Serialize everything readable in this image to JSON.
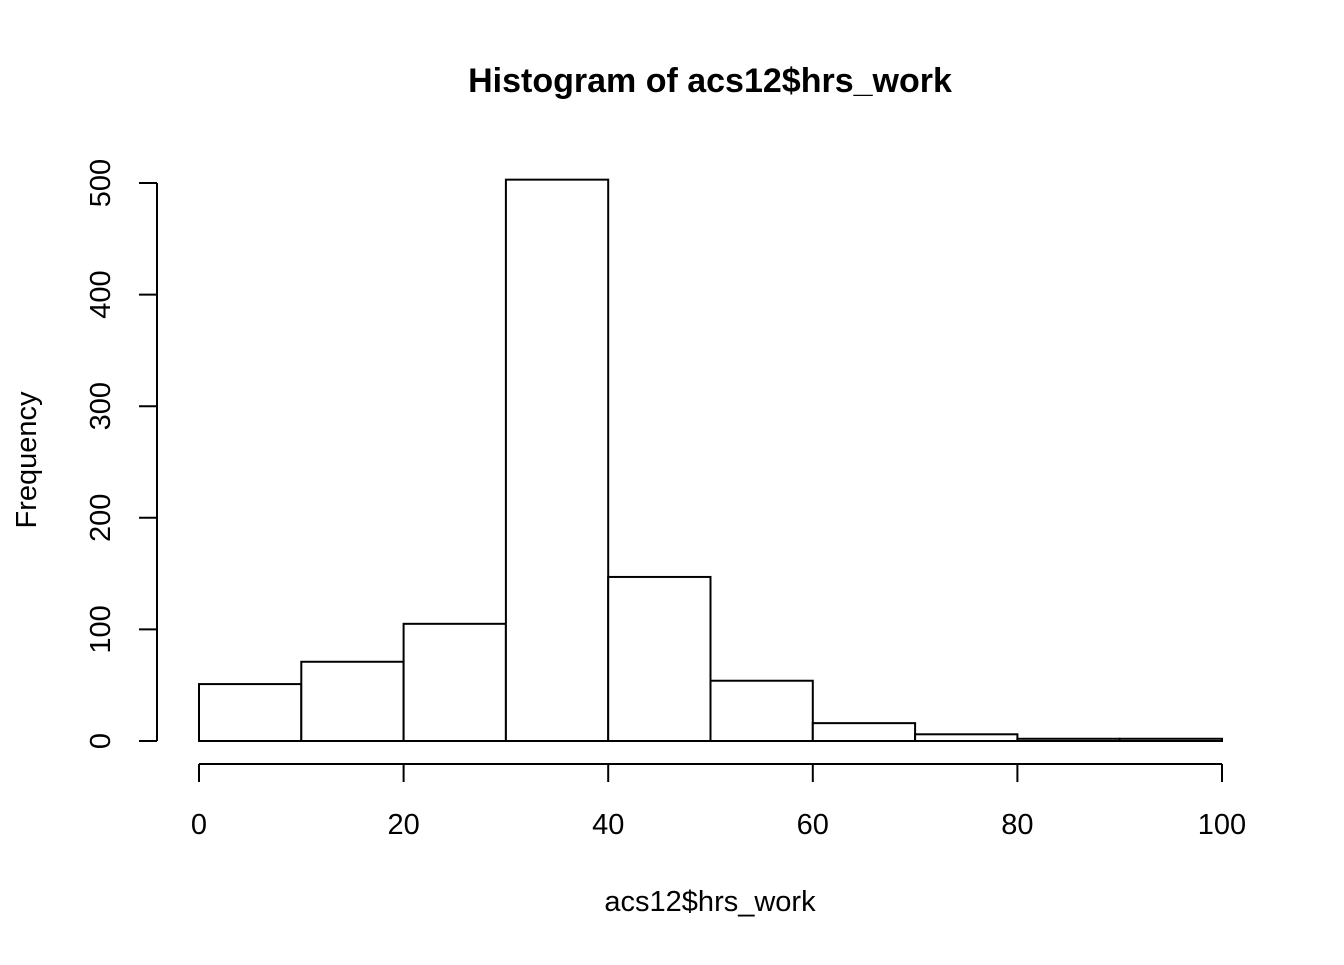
{
  "chart_data": {
    "type": "bar",
    "title": "Histogram of acs12$hrs_work",
    "xlabel": "acs12$hrs_work",
    "ylabel": "Frequency",
    "bins": [
      {
        "x0": 0,
        "x1": 10,
        "value": 51
      },
      {
        "x0": 10,
        "x1": 20,
        "value": 71
      },
      {
        "x0": 20,
        "x1": 30,
        "value": 105
      },
      {
        "x0": 30,
        "x1": 40,
        "value": 503
      },
      {
        "x0": 40,
        "x1": 50,
        "value": 147
      },
      {
        "x0": 50,
        "x1": 60,
        "value": 54
      },
      {
        "x0": 60,
        "x1": 70,
        "value": 16
      },
      {
        "x0": 70,
        "x1": 80,
        "value": 6
      },
      {
        "x0": 80,
        "x1": 90,
        "value": 2
      },
      {
        "x0": 90,
        "x1": 100,
        "value": 2
      }
    ],
    "xlim": [
      0,
      100
    ],
    "ylim": [
      0,
      500
    ],
    "x_ticks": [
      0,
      20,
      40,
      60,
      80,
      100
    ],
    "y_ticks": [
      0,
      100,
      200,
      300,
      400,
      500
    ],
    "grid": false,
    "bar_fill": "#ffffff",
    "bar_stroke": "#000000"
  }
}
